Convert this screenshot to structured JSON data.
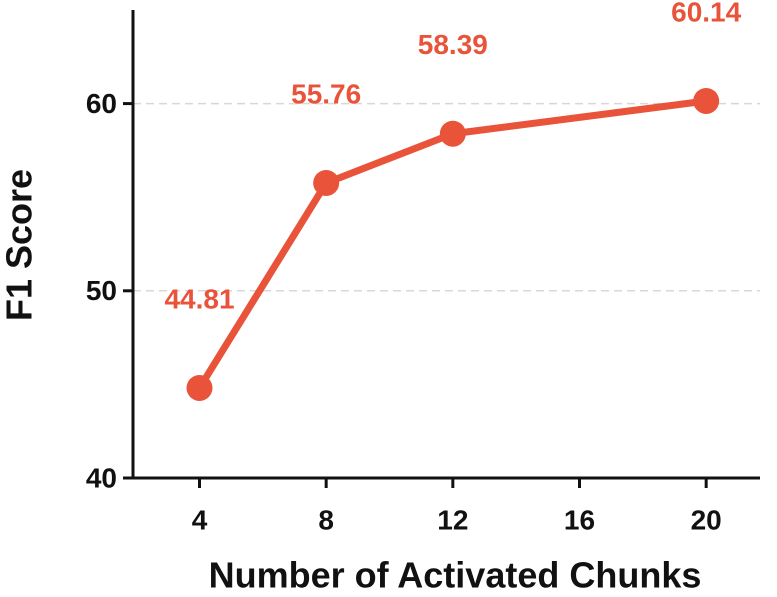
{
  "chart_data": {
    "type": "line",
    "x_label": "Number of Activated Chunks",
    "y_label": "F1 Score",
    "x": [
      4,
      8,
      12,
      20
    ],
    "series": [
      {
        "name": "F1",
        "color": "#e8533a",
        "values": [
          44.81,
          55.76,
          58.39,
          60.14
        ]
      }
    ],
    "xlim": [
      1.9,
      21.7
    ],
    "xticks": [
      4,
      8,
      12,
      16,
      20
    ],
    "ylim": [
      40,
      65
    ],
    "yticks": [
      40,
      50,
      60
    ],
    "grid": true
  }
}
